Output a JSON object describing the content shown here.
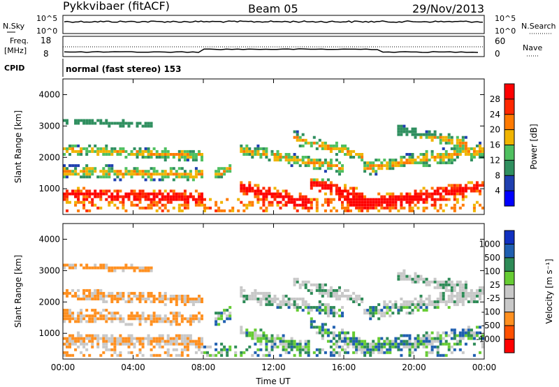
{
  "header": {
    "station": "Pykkvibaer (fitACF)",
    "beam": "Beam 05",
    "date": "29/Nov/2013"
  },
  "panels_top": {
    "nsky_label": "N.Sky",
    "nsky_ticks": [
      "10^5",
      "10^0"
    ],
    "nsearch_ticks": [
      "10^5",
      "10^0"
    ],
    "nsearch_label": "N.Search",
    "freq_label_1": "Freq.",
    "freq_label_2": "[MHz]",
    "freq_ticks": [
      "18",
      "8"
    ],
    "nave_ticks": [
      "60",
      "0"
    ],
    "nave_label": "Nave",
    "cpid_label": "CPID",
    "cpid_value": "normal (fast stereo) 153"
  },
  "colors": {
    "power_scale": [
      "#0000ff",
      "#1f3fb0",
      "#2f8f5f",
      "#4fc060",
      "#f0b400",
      "#ff7a00",
      "#ff2800",
      "#ff0000"
    ],
    "velocity_scale": [
      "#ff0000",
      "#ff5000",
      "#ff9020",
      "#c8c8c8",
      "#c8c8c8",
      "#66cc33",
      "#2e8b57",
      "#1f5fb0",
      "#1030c0"
    ]
  },
  "chart_data": [
    {
      "type": "heatmap",
      "name": "power",
      "ylabel": "Slant Range [km]",
      "xlabel": "",
      "xlim": [
        "00:00",
        "24:00"
      ],
      "ylim": [
        180,
        4500
      ],
      "yticks": [
        1000,
        2000,
        3000,
        4000
      ],
      "xticks": [
        "00:00",
        "04:00",
        "08:00",
        "12:00",
        "16:00",
        "20:00",
        "00:00"
      ],
      "colorbar_label": "Power [dB]",
      "colorbar_ticks": [
        "28",
        "24",
        "20",
        "16",
        "12",
        "8",
        "4"
      ],
      "colorbar_range": [
        0,
        30
      ]
    },
    {
      "type": "heatmap",
      "name": "velocity",
      "ylabel": "Slant Range [km]",
      "xlabel": "Time UT",
      "xlim": [
        "00:00",
        "24:00"
      ],
      "ylim": [
        180,
        4500
      ],
      "yticks": [
        1000,
        2000,
        3000,
        4000
      ],
      "xticks": [
        "00:00",
        "04:00",
        "08:00",
        "12:00",
        "16:00",
        "20:00",
        "00:00"
      ],
      "colorbar_label": "Velocity [m s⁻¹]",
      "colorbar_ticks": [
        "1000",
        "500",
        "100",
        "25",
        "-25",
        "-100",
        "-500",
        "-1000"
      ]
    }
  ]
}
